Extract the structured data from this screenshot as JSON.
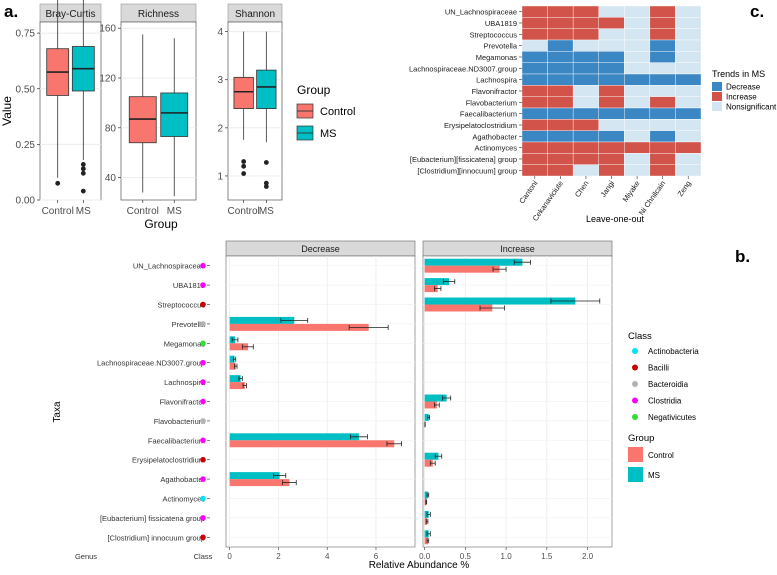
{
  "colors": {
    "control": "#F8766D",
    "ms": "#00BFC4",
    "decrease": "#3B87C4",
    "increase": "#D1534A",
    "nonsignificant": "#D4E6F2",
    "strip": "#D9D9D9",
    "grid": "#EBEBEB",
    "actinobacteria": "#00E5EE",
    "bacilli": "#CC0000",
    "bacteroidia": "#B3B3B3",
    "clostridia": "#FF00FF",
    "negativicutes": "#33DD33"
  },
  "panel_labels": {
    "a": "a.",
    "b": "b.",
    "c": "c."
  },
  "chart_data": [
    {
      "type": "box",
      "panel": "a",
      "facets": [
        "Bray-Curtis",
        "Richness",
        "Shannon"
      ],
      "xlabel": "Group",
      "ylabel": "Value",
      "categories": [
        "Control",
        "MS"
      ],
      "legend": {
        "title": "Group",
        "entries": [
          "Control",
          "MS"
        ],
        "placement": "right"
      },
      "boxes": [
        {
          "facet": "Bray-Curtis",
          "ylim": [
            0,
            0.8
          ],
          "yticks": [
            "0.00",
            "0.25",
            "0.50",
            "0.75"
          ],
          "ytick_values": [
            0,
            0.25,
            0.5,
            0.75
          ],
          "groups": [
            {
              "group": "Control",
              "min": 0.1,
              "q1": 0.47,
              "median": 0.575,
              "q3": 0.68,
              "max": 0.92,
              "outliers": [
                0.075
              ]
            },
            {
              "group": "MS",
              "min": 0.18,
              "q1": 0.49,
              "median": 0.59,
              "q3": 0.69,
              "max": 0.92,
              "outliers": [
                0.16,
                0.14,
                0.12,
                0.04
              ]
            }
          ]
        },
        {
          "facet": "Richness",
          "ylim": [
            22,
            165
          ],
          "yticks": [
            "40",
            "80",
            "120",
            "160"
          ],
          "ytick_values": [
            40,
            80,
            120,
            160
          ],
          "groups": [
            {
              "group": "Control",
              "min": 28,
              "q1": 68,
              "median": 87,
              "q3": 105,
              "max": 155,
              "outliers": []
            },
            {
              "group": "MS",
              "min": 25,
              "q1": 73,
              "median": 92,
              "q3": 108,
              "max": 152,
              "outliers": []
            }
          ]
        },
        {
          "facet": "Shannon",
          "ylim": [
            0.5,
            4.2
          ],
          "yticks": [
            "1",
            "2",
            "3",
            "4"
          ],
          "ytick_values": [
            1,
            2,
            3,
            4
          ],
          "groups": [
            {
              "group": "Control",
              "min": 1.75,
              "q1": 2.4,
              "median": 2.75,
              "q3": 3.05,
              "max": 4.0,
              "outliers": [
                1.3,
                1.2,
                1.05
              ]
            },
            {
              "group": "MS",
              "min": 1.7,
              "q1": 2.4,
              "median": 2.85,
              "q3": 3.2,
              "max": 4.0,
              "outliers": [
                1.28,
                0.85,
                0.78
              ]
            }
          ]
        }
      ]
    },
    {
      "type": "bar",
      "panel": "b",
      "orientation": "horizontal",
      "facets": [
        "Decrease",
        "Increase"
      ],
      "xlabel": "Relative Abundance %",
      "ylabel": "Taxa",
      "left_headers": [
        "Genus",
        "Class"
      ],
      "facet_xlims": {
        "Decrease": [
          -0.15,
          7.6
        ],
        "Increase": [
          -0.02,
          2.3
        ]
      },
      "facet_xticks": {
        "Decrease": {
          "values": [
            0,
            2,
            4,
            6
          ],
          "labels": [
            "0",
            "2",
            "4",
            "6"
          ]
        },
        "Increase": {
          "values": [
            0,
            0.5,
            1.0,
            1.5,
            2.0
          ],
          "labels": [
            "0.0",
            "0.5",
            "1.0",
            "1.5",
            "2.0"
          ]
        }
      },
      "taxa": [
        {
          "name": "UN_Lachnospiraceae",
          "class": "Clostridia",
          "facet": "Increase",
          "ms": 1.2,
          "ms_err": 0.1,
          "control": 0.92,
          "control_err": 0.08
        },
        {
          "name": "UBA1819",
          "class": "Clostridia",
          "facet": "Increase",
          "ms": 0.3,
          "ms_err": 0.07,
          "control": 0.16,
          "control_err": 0.04
        },
        {
          "name": "Streptococcus",
          "class": "Bacilli",
          "facet": "Increase",
          "ms": 1.85,
          "ms_err": 0.3,
          "control": 0.83,
          "control_err": 0.15
        },
        {
          "name": "Prevotella",
          "class": "Bacteroidia",
          "facet": "Decrease",
          "ms": 2.65,
          "ms_err": 0.55,
          "control": 5.7,
          "control_err": 0.8
        },
        {
          "name": "Megamonas",
          "class": "Negativicutes",
          "facet": "Decrease",
          "ms": 0.22,
          "ms_err": 0.12,
          "control": 0.75,
          "control_err": 0.22
        },
        {
          "name": "Lachnospiraceae.ND3007.group",
          "class": "Clostridia",
          "facet": "Decrease",
          "ms": 0.2,
          "ms_err": 0.05,
          "control": 0.25,
          "control_err": 0.05
        },
        {
          "name": "Lachnospira",
          "class": "Clostridia",
          "facet": "Decrease",
          "ms": 0.45,
          "ms_err": 0.07,
          "control": 0.62,
          "control_err": 0.07
        },
        {
          "name": "Flavonifractor",
          "class": "Clostridia",
          "facet": "Increase",
          "ms": 0.27,
          "ms_err": 0.05,
          "control": 0.15,
          "control_err": 0.03
        },
        {
          "name": "Flavobacterium",
          "class": "Bacteroidia",
          "facet": "Increase",
          "ms": 0.05,
          "ms_err": 0.01,
          "control": 0.005,
          "control_err": 0.002
        },
        {
          "name": "Faecalibacterium",
          "class": "Clostridia",
          "facet": "Decrease",
          "ms": 5.3,
          "ms_err": 0.35,
          "control": 6.75,
          "control_err": 0.3
        },
        {
          "name": "Erysipelatoclostridium",
          "class": "Bacilli",
          "facet": "Increase",
          "ms": 0.17,
          "ms_err": 0.04,
          "control": 0.1,
          "control_err": 0.03
        },
        {
          "name": "Agathobacter",
          "class": "Clostridia",
          "facet": "Decrease",
          "ms": 2.05,
          "ms_err": 0.25,
          "control": 2.45,
          "control_err": 0.28
        },
        {
          "name": "Actinomyces",
          "class": "Actinobacteria",
          "facet": "Increase",
          "ms": 0.04,
          "ms_err": 0.01,
          "control": 0.02,
          "control_err": 0.005
        },
        {
          "name": "[Eubacterium] fissicatena group",
          "class": "Clostridia",
          "facet": "Increase",
          "ms": 0.05,
          "ms_err": 0.02,
          "control": 0.03,
          "control_err": 0.01
        },
        {
          "name": "[Clostridium] innocuum group",
          "class": "Bacilli",
          "facet": "Increase",
          "ms": 0.05,
          "ms_err": 0.02,
          "control": 0.04,
          "control_err": 0.01
        }
      ],
      "class_legend": {
        "title": "Class",
        "entries": [
          "Actinobacteria",
          "Bacilli",
          "Bacteroidia",
          "Clostridia",
          "Negativicutes"
        ],
        "placement": "right"
      },
      "group_legend": {
        "title": "Group",
        "entries": [
          "Control",
          "MS"
        ],
        "placement": "right"
      }
    },
    {
      "type": "heatmap",
      "panel": "c",
      "xlabel": "Leave-one-out",
      "columns": [
        "Cantoni",
        "Cekanaviciute",
        "Chen",
        "Jangi",
        "Miyake",
        "Ni Chnilcain",
        "Zeng"
      ],
      "rows": [
        "UN_Lachnospiraceae",
        "UBA1819",
        "Streptococcus",
        "Prevotella",
        "Megamonas",
        "Lachnospiraceae.ND3007.group",
        "Lachnospira",
        "Flavonifractor",
        "Flavobacterium",
        "Faecalibacterium",
        "Erysipelatoclostridium",
        "Agathobacter",
        "Actinomyces",
        "[Eubacterium][fissicatena] group",
        "[Clostridium][innocuum] group"
      ],
      "values": [
        [
          "I",
          "I",
          "I",
          "N",
          "N",
          "I",
          "N"
        ],
        [
          "I",
          "I",
          "I",
          "I",
          "N",
          "I",
          "N"
        ],
        [
          "I",
          "I",
          "I",
          "N",
          "N",
          "I",
          "N"
        ],
        [
          "N",
          "D",
          "N",
          "N",
          "N",
          "D",
          "N"
        ],
        [
          "D",
          "D",
          "D",
          "D",
          "N",
          "D",
          "N"
        ],
        [
          "D",
          "D",
          "D",
          "D",
          "N",
          "N",
          "N"
        ],
        [
          "D",
          "D",
          "D",
          "D",
          "D",
          "D",
          "D"
        ],
        [
          "I",
          "I",
          "N",
          "I",
          "N",
          "N",
          "N"
        ],
        [
          "I",
          "I",
          "N",
          "I",
          "N",
          "I",
          "N"
        ],
        [
          "D",
          "D",
          "D",
          "D",
          "D",
          "D",
          "D"
        ],
        [
          "I",
          "I",
          "I",
          "N",
          "N",
          "N",
          "N"
        ],
        [
          "D",
          "D",
          "D",
          "D",
          "N",
          "D",
          "N"
        ],
        [
          "I",
          "I",
          "I",
          "I",
          "I",
          "I",
          "I"
        ],
        [
          "I",
          "I",
          "I",
          "I",
          "N",
          "I",
          "N"
        ],
        [
          "I",
          "I",
          "N",
          "I",
          "N",
          "I",
          "N"
        ]
      ],
      "legend": {
        "title": "Trends in MS",
        "entries": [
          "Decrease",
          "Increase",
          "Nonsignificant"
        ],
        "codes": [
          "D",
          "I",
          "N"
        ],
        "placement": "right"
      }
    }
  ]
}
